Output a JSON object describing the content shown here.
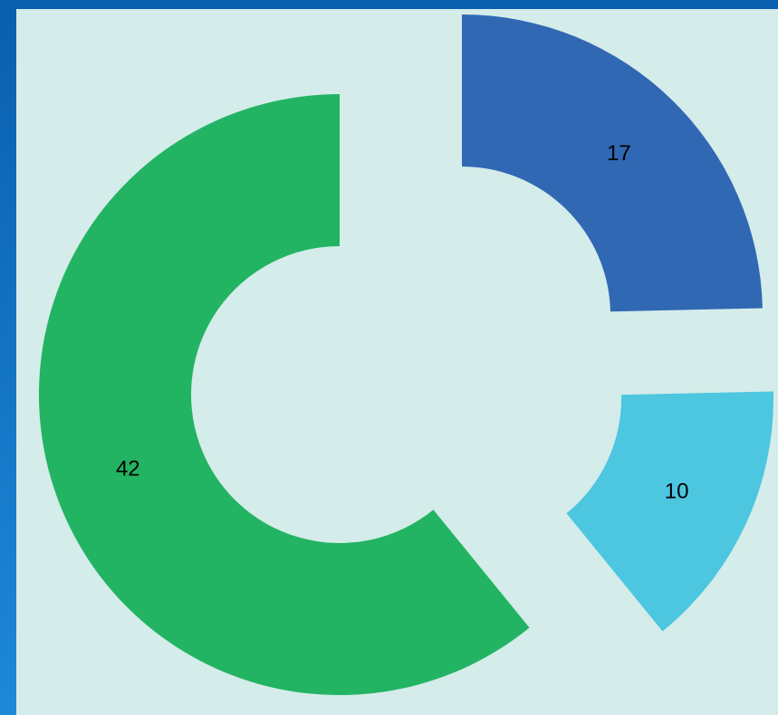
{
  "chart_data": {
    "type": "donut",
    "values": [
      17,
      10,
      42
    ],
    "colors": [
      "#3168b4",
      "#4dc6e0",
      "#22b462"
    ]
  }
}
